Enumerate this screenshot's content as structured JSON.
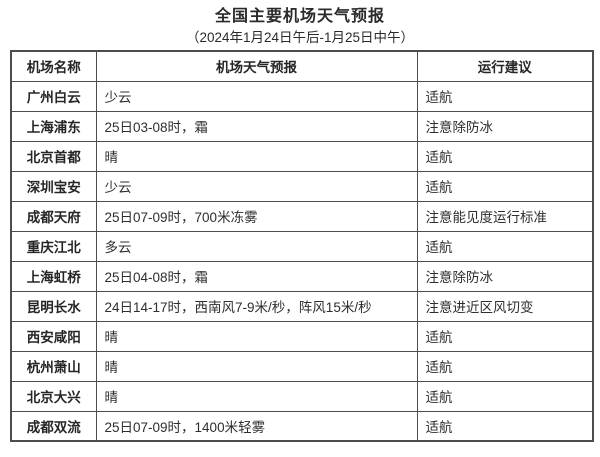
{
  "title": "全国主要机场天气预报",
  "subtitle": "（2024年1月24日午后-1月25日中午）",
  "table": {
    "headers": {
      "airport": "机场名称",
      "forecast": "机场天气预报",
      "advice": "运行建议"
    },
    "rows": [
      {
        "airport": "广州白云",
        "forecast": "少云",
        "advice": "适航"
      },
      {
        "airport": "上海浦东",
        "forecast": "25日03-08时，霜",
        "advice": "注意除防冰"
      },
      {
        "airport": "北京首都",
        "forecast": "晴",
        "advice": "适航"
      },
      {
        "airport": "深圳宝安",
        "forecast": "少云",
        "advice": "适航"
      },
      {
        "airport": "成都天府",
        "forecast": "25日07-09时，700米冻雾",
        "advice": "注意能见度运行标准"
      },
      {
        "airport": "重庆江北",
        "forecast": "多云",
        "advice": "适航"
      },
      {
        "airport": "上海虹桥",
        "forecast": "25日04-08时，霜",
        "advice": "注意除防冰"
      },
      {
        "airport": "昆明长水",
        "forecast": "24日14-17时，西南风7-9米/秒，阵风15米/秒",
        "advice": "注意进近区风切变"
      },
      {
        "airport": "西安咸阳",
        "forecast": "晴",
        "advice": "适航"
      },
      {
        "airport": "杭州萧山",
        "forecast": "晴",
        "advice": "适航"
      },
      {
        "airport": "北京大兴",
        "forecast": "晴",
        "advice": "适航"
      },
      {
        "airport": "成都双流",
        "forecast": "25日07-09时，1400米轻雾",
        "advice": "适航"
      }
    ]
  },
  "colors": {
    "border": "#4d4d4d",
    "text": "#262626",
    "background": "#ffffff"
  }
}
